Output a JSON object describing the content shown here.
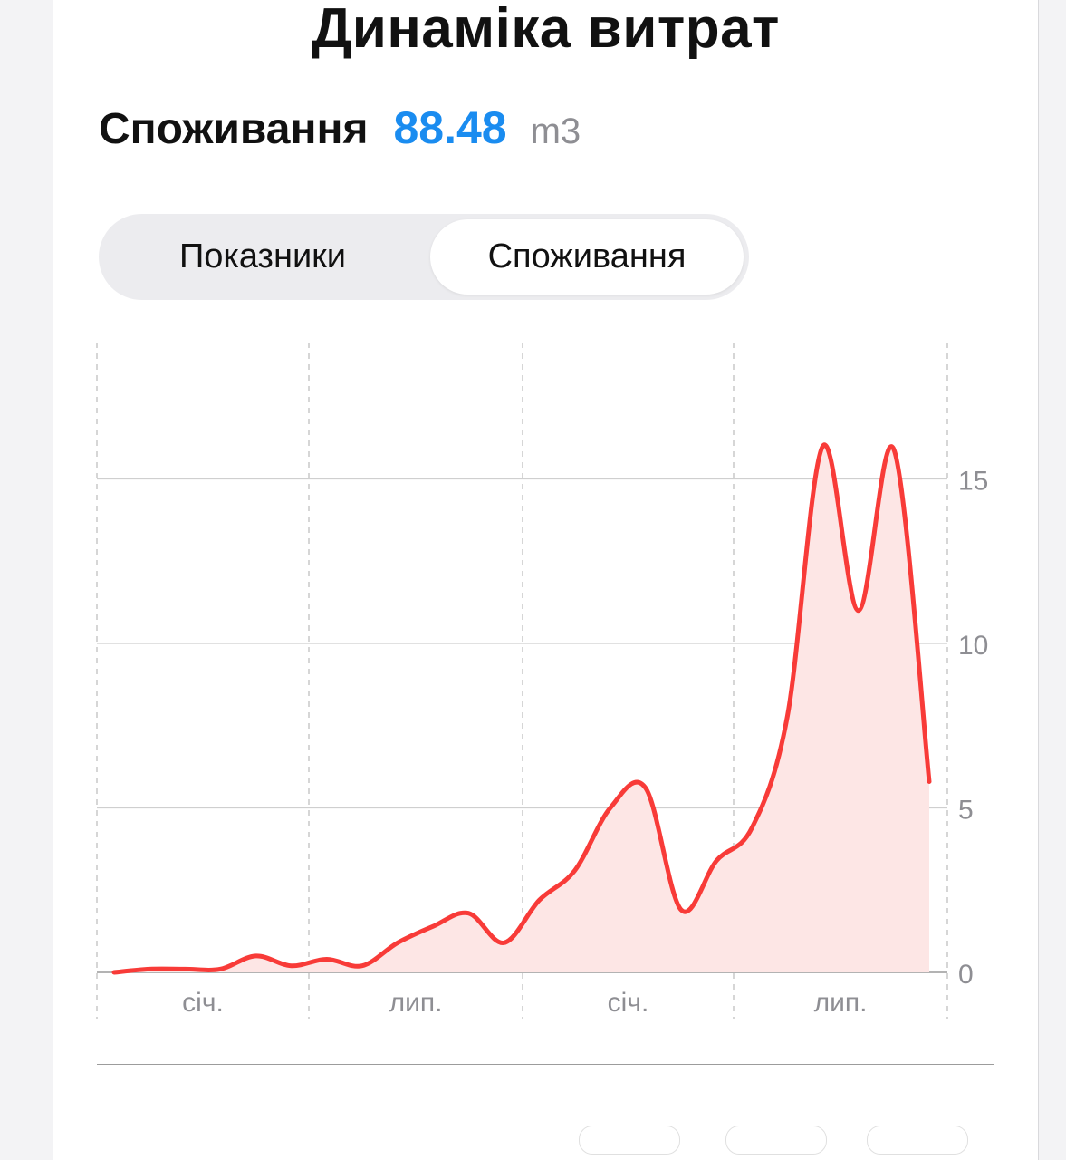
{
  "header": {
    "title": "Динаміка витрат"
  },
  "summary": {
    "label": "Споживання",
    "value": "88.48",
    "unit": "m3",
    "value_color": "#1a8cf0"
  },
  "tabs": [
    {
      "label": "Показники",
      "active": false
    },
    {
      "label": "Споживання",
      "active": true
    }
  ],
  "chart_data": {
    "type": "area",
    "title": "",
    "xlabel": "",
    "ylabel": "",
    "ylim": [
      0,
      18
    ],
    "y_ticks": [
      0,
      5,
      10,
      15
    ],
    "y_tick_labels": [
      "0",
      "5",
      "10",
      "15"
    ],
    "x_tick_labels": [
      "січ.",
      "лип.",
      "січ.",
      "лип."
    ],
    "grid": true,
    "line_color": "#f83b38",
    "fill_color": "#fde6e5",
    "x": [
      0,
      1,
      2,
      3,
      4,
      5,
      6,
      7,
      8,
      9,
      10,
      11,
      12,
      13,
      14,
      15,
      16,
      17,
      18,
      19,
      20,
      21,
      22,
      23
    ],
    "values": [
      0.0,
      0.1,
      0.1,
      0.1,
      0.5,
      0.2,
      0.4,
      0.2,
      0.9,
      1.4,
      1.8,
      0.9,
      2.2,
      3.1,
      5.0,
      5.6,
      1.9,
      3.4,
      4.4,
      7.8,
      16.0,
      11.0,
      15.9,
      5.8
    ]
  }
}
